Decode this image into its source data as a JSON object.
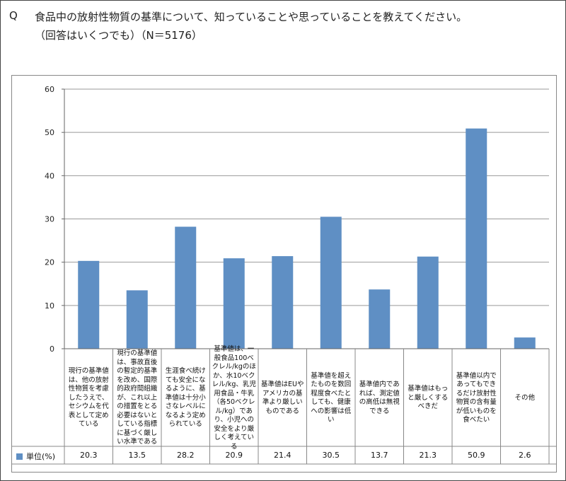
{
  "header": {
    "q_label": "Q",
    "title_line1": "食品中の放射性物質の基準について、知っていることや思っていることを教えてください。",
    "title_line2": "（回答はいくつでも）（N＝5176）"
  },
  "chart_data": {
    "type": "bar",
    "ylim": [
      0,
      60
    ],
    "yticks": [
      0,
      10,
      20,
      30,
      40,
      50,
      60
    ],
    "grid": true,
    "bar_color": "#5f8fc4",
    "categories": [
      "現行の基準値は、他の放射性物質を考慮したうえで、セシウムを代表として定めている",
      "現行の基準値は、事故直後の暫定的基準を改め、国際的政府間組織が、これ以上の措置をとる必要はないとしている指標に基づく厳しい水準である",
      "生涯食べ続けても安全になるように、基準値は十分小さなレベルになるよう定められている",
      "基準値は、一般食品100ベクレル/kgのほか、水10ベクレル/kg、乳児用食品・牛乳（各50ベクレル/kg）であり、小児への安全をより厳しく考えている",
      "基準値はEUやアメリカの基準より厳しいものである",
      "基準値を超えたものを数回程度食べたとしても、健康への影響は低い",
      "基準値内であれば、測定値の高低は無視できる",
      "基準値はもっと厳しくするべきだ",
      "基準値以内であってもできるだけ放射性物質の含有量が低いものを食べたい",
      "その他"
    ],
    "series": [
      {
        "name": "単位(%)",
        "values": [
          20.3,
          13.5,
          28.2,
          20.9,
          21.4,
          30.5,
          13.7,
          21.3,
          50.9,
          2.6
        ]
      }
    ],
    "value_labels": [
      "20.3",
      "13.5",
      "28.2",
      "20.9",
      "21.4",
      "30.5",
      "13.7",
      "21.3",
      "50.9",
      "2.6"
    ]
  }
}
